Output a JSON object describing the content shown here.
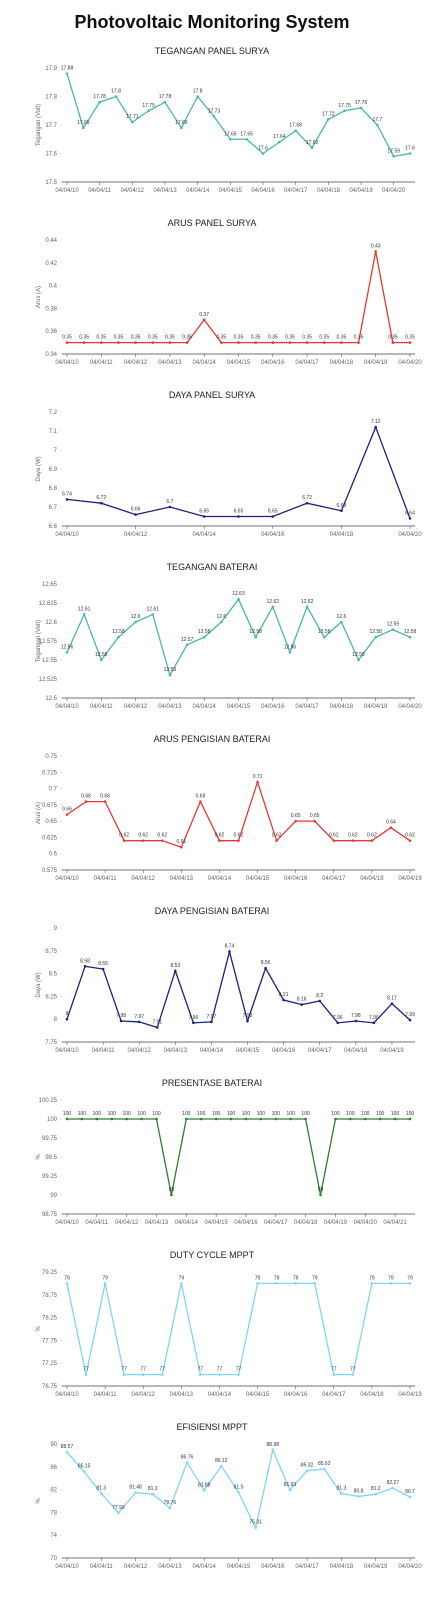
{
  "title": "Photovoltaic Monitoring System",
  "chart_data": [
    {
      "type": "line",
      "title": "TEGANGAN PANEL SURYA",
      "y_label": "Tegangan (Volt)",
      "color": "#4db6ac",
      "ylim": [
        17.5,
        17.9
      ],
      "yticks": [
        17.5,
        17.6,
        17.7,
        17.8,
        17.9
      ],
      "grid": false,
      "categories": [
        "04/04/10",
        null,
        "04/04/11",
        null,
        "04/04/12",
        null,
        "04/04/13",
        null,
        "04/04/14",
        null,
        "04/04/15",
        null,
        "04/04/16",
        null,
        "04/04/17",
        null,
        "04/04/18",
        null,
        "04/04/19",
        null,
        "04/04/20",
        null
      ],
      "values": [
        17.88,
        17.69,
        17.78,
        17.8,
        17.71,
        17.75,
        17.78,
        17.69,
        17.8,
        17.73,
        17.65,
        17.65,
        17.6,
        17.64,
        17.68,
        17.62,
        17.72,
        17.75,
        17.76,
        17.7,
        17.59,
        17.6
      ]
    },
    {
      "type": "line",
      "title": "ARUS PANEL SURYA",
      "y_label": "Arus (A)",
      "color": "#e53935",
      "ylim": [
        0.34,
        0.44
      ],
      "yticks": [
        0.34,
        0.36,
        0.38,
        0.4,
        0.42,
        0.44
      ],
      "grid": false,
      "categories": [
        "04/04/10",
        null,
        "04/04/11",
        null,
        "04/04/12",
        null,
        "04/04/13",
        null,
        "04/04/14",
        null,
        "04/04/15",
        null,
        "04/04/16",
        null,
        "04/04/17",
        null,
        "04/04/18",
        null,
        "04/04/19",
        null,
        "04/04/20"
      ],
      "values": [
        0.35,
        0.35,
        0.35,
        0.35,
        0.35,
        0.35,
        0.35,
        0.35,
        0.37,
        0.35,
        0.35,
        0.35,
        0.35,
        0.35,
        0.35,
        0.35,
        0.35,
        0.35,
        0.43,
        0.35,
        0.35
      ]
    },
    {
      "type": "line",
      "title": "DAYA PANEL SURYA",
      "y_label": "Daya (W)",
      "color": "#1a237e",
      "ylim": [
        6.6,
        7.2
      ],
      "yticks": [
        6.6,
        6.7,
        6.8,
        6.9,
        7,
        7.1,
        7.2
      ],
      "grid": false,
      "categories": [
        "04/04/10",
        null,
        "04/04/12",
        null,
        "04/04/14",
        null,
        "04/04/16",
        null,
        "04/04/18",
        null,
        "04/04/20"
      ],
      "values": [
        6.74,
        6.72,
        6.66,
        6.7,
        6.65,
        6.65,
        6.65,
        6.72,
        6.68,
        7.12,
        6.64
      ]
    },
    {
      "type": "line",
      "title": "TEGANGAN BATERAI",
      "y_label": "Tegangan (Volt)",
      "color": "#4db6ac",
      "ylim": [
        12.5,
        12.65
      ],
      "yticks": [
        12.5,
        12.525,
        12.55,
        12.575,
        12.6,
        12.625,
        12.65
      ],
      "grid": false,
      "categories": [
        "04/04/10",
        null,
        "04/04/11",
        null,
        "04/04/12",
        null,
        "04/04/13",
        null,
        "04/04/14",
        null,
        "04/04/15",
        null,
        "04/04/16",
        null,
        "04/04/17",
        null,
        "04/04/18",
        null,
        "04/04/19",
        null,
        "04/04/20"
      ],
      "values": [
        12.56,
        12.61,
        12.55,
        12.58,
        12.6,
        12.61,
        12.53,
        12.57,
        12.58,
        12.6,
        12.63,
        12.58,
        12.62,
        12.56,
        12.62,
        12.58,
        12.6,
        12.55,
        12.58,
        12.59,
        12.58
      ]
    },
    {
      "type": "line",
      "title": "ARUS PENGISIAN BATERAI",
      "y_label": "Arus (A)",
      "color": "#e53935",
      "ylim": [
        0.575,
        0.75
      ],
      "yticks": [
        0.575,
        0.6,
        0.625,
        0.65,
        0.675,
        0.7,
        0.725,
        0.75
      ],
      "grid": false,
      "categories": [
        "04/04/10",
        null,
        "04/04/11",
        null,
        "04/04/12",
        null,
        "04/04/13",
        null,
        "04/04/14",
        null,
        "04/04/15",
        null,
        "04/04/16",
        null,
        "04/04/17",
        null,
        "04/04/18",
        null,
        "04/04/19"
      ],
      "values": [
        0.66,
        0.68,
        0.68,
        0.62,
        0.62,
        0.62,
        0.61,
        0.68,
        0.62,
        0.62,
        0.71,
        0.62,
        0.65,
        0.65,
        0.62,
        0.62,
        0.62,
        0.64,
        0.62
      ]
    },
    {
      "type": "line",
      "title": "DAYA PENGISIAN BATERAI",
      "y_label": "Daya (W)",
      "color": "#1a237e",
      "ylim": [
        7.75,
        9
      ],
      "yticks": [
        7.75,
        8,
        8.25,
        8.5,
        8.75,
        9
      ],
      "grid": false,
      "categories": [
        "04/04/10",
        null,
        "04/04/11",
        null,
        "04/04/12",
        null,
        "04/04/13",
        null,
        "04/04/14",
        null,
        "04/04/15",
        null,
        "04/04/16",
        null,
        "04/04/17",
        null,
        "04/04/18",
        null,
        "04/04/19",
        null
      ],
      "values": [
        8,
        8.58,
        8.55,
        7.98,
        7.97,
        7.91,
        8.53,
        7.96,
        7.97,
        8.74,
        7.98,
        8.56,
        8.21,
        8.16,
        8.2,
        7.96,
        7.98,
        7.96,
        8.17,
        7.99
      ]
    },
    {
      "type": "line",
      "title": "PRESENTASE BATERAI",
      "y_label": "%",
      "color": "#2e7d32",
      "ylim": [
        98.75,
        100.25
      ],
      "yticks": [
        98.75,
        99,
        99.25,
        99.5,
        99.75,
        100,
        100.25
      ],
      "grid": false,
      "categories": [
        "04/04/10",
        null,
        "04/04/11",
        null,
        "04/04/12",
        null,
        "04/04/13",
        null,
        "04/04/14",
        null,
        "04/04/15",
        null,
        "04/04/16",
        null,
        "04/04/17",
        null,
        "04/04/18",
        null,
        "04/04/19",
        null,
        "04/04/20",
        null,
        "04/04/21",
        null
      ],
      "values": [
        100,
        100,
        100,
        100,
        100,
        100,
        100,
        99,
        100,
        100,
        100,
        100,
        100,
        100,
        100,
        100,
        100,
        99,
        100,
        100,
        100,
        100,
        100,
        100
      ]
    },
    {
      "type": "line",
      "title": "DUTY CYCLE MPPT",
      "y_label": "%",
      "color": "#81d4fa",
      "ylim": [
        76.75,
        79.25
      ],
      "yticks": [
        76.75,
        77.25,
        77.75,
        78.25,
        78.75,
        79.25
      ],
      "grid": false,
      "categories": [
        "04/04/10",
        null,
        "04/04/11",
        null,
        "04/04/12",
        null,
        "04/04/13",
        null,
        "04/04/14",
        null,
        "04/04/15",
        null,
        "04/04/16",
        null,
        "04/04/17",
        null,
        "04/04/18",
        null,
        "04/04/19"
      ],
      "values": [
        79,
        77,
        79,
        77,
        77,
        77,
        79,
        77,
        77,
        77,
        79,
        79,
        79,
        79,
        77,
        77,
        79,
        79,
        79
      ]
    },
    {
      "type": "line",
      "title": "EFISIENSI MPPT",
      "y_label": "%",
      "color": "#81d4fa",
      "ylim": [
        70,
        90
      ],
      "yticks": [
        70,
        74,
        78,
        82,
        86,
        90
      ],
      "grid": false,
      "categories": [
        "04/04/10",
        null,
        "04/04/11",
        null,
        "04/04/12",
        null,
        "04/04/13",
        null,
        "04/04/14",
        null,
        "04/04/15",
        null,
        "04/04/16",
        null,
        "04/04/17",
        null,
        "04/04/18",
        null,
        "04/04/19",
        null,
        "04/04/20"
      ],
      "values": [
        88.57,
        85.15,
        81.3,
        77.93,
        81.48,
        81.2,
        78.76,
        86.76,
        81.88,
        86.12,
        81.5,
        75.31,
        88.98,
        81.93,
        85.32,
        85.62,
        81.3,
        80.8,
        81.2,
        82.27,
        80.7
      ]
    }
  ]
}
